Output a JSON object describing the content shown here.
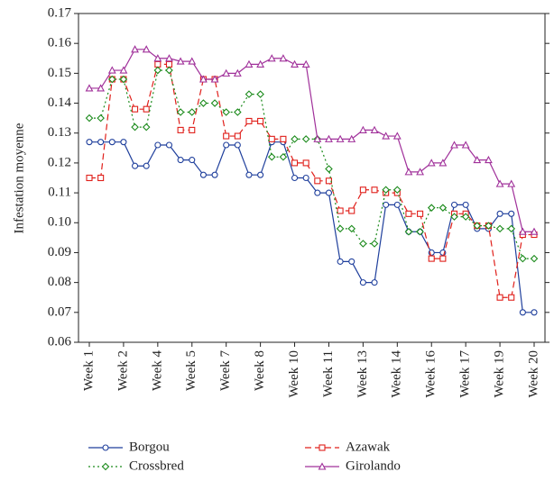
{
  "chart_data": {
    "type": "line",
    "y_label": "Infestation moyenne",
    "categories": [
      "Week 1",
      null,
      null,
      "Week 2",
      null,
      null,
      "Week 4",
      null,
      null,
      "Week 5",
      null,
      null,
      "Week 7",
      null,
      null,
      "Week 8",
      null,
      null,
      "Week 10",
      null,
      null,
      "Week 11",
      null,
      null,
      "Week 13",
      null,
      null,
      "Week 14",
      null,
      null,
      "Week 16",
      null,
      null,
      "Week 17",
      null,
      null,
      "Week 19",
      null,
      null,
      "Week 20"
    ],
    "ylim": [
      0.06,
      0.17
    ],
    "yticks": [
      0.06,
      0.07,
      0.08,
      0.09,
      {
        "value": 0.1,
        "label": "0.10"
      },
      0.11,
      0.12,
      0.13,
      0.14,
      0.15,
      0.16,
      0.17
    ],
    "series": [
      {
        "name": "Borgou",
        "color": "#1f3f9c",
        "marker": "circle",
        "dash": "none",
        "values": [
          0.127,
          0.127,
          0.127,
          0.127,
          0.119,
          0.119,
          0.126,
          0.126,
          0.121,
          0.121,
          0.116,
          0.116,
          0.126,
          0.126,
          0.116,
          0.116,
          0.127,
          0.127,
          0.115,
          0.115,
          0.11,
          0.11,
          0.087,
          0.087,
          0.08,
          0.08,
          0.106,
          0.106,
          0.097,
          0.097,
          0.09,
          0.09,
          0.106,
          0.106,
          0.098,
          0.098,
          0.103,
          0.103,
          0.07,
          0.07
        ]
      },
      {
        "name": "Azawak",
        "color": "#e0201b",
        "marker": "square",
        "dash": "7 4",
        "values": [
          0.115,
          0.115,
          0.148,
          0.148,
          0.138,
          0.138,
          0.153,
          0.153,
          0.131,
          0.131,
          0.148,
          0.148,
          0.129,
          0.129,
          0.134,
          0.134,
          0.128,
          0.128,
          0.12,
          0.12,
          0.114,
          0.114,
          0.104,
          0.104,
          0.111,
          0.111,
          0.11,
          0.11,
          0.103,
          0.103,
          0.088,
          0.088,
          0.103,
          0.103,
          0.099,
          0.099,
          0.075,
          0.075,
          0.096,
          0.096
        ]
      },
      {
        "name": "Crossbred",
        "color": "#1a8a1a",
        "marker": "diamond",
        "dash": "2 3",
        "values": [
          0.135,
          0.135,
          0.148,
          0.148,
          0.132,
          0.132,
          0.151,
          0.151,
          0.137,
          0.137,
          0.14,
          0.14,
          0.137,
          0.137,
          0.143,
          0.143,
          0.122,
          0.122,
          0.128,
          0.128,
          0.128,
          0.118,
          0.098,
          0.098,
          0.093,
          0.093,
          0.111,
          0.111,
          0.097,
          0.097,
          0.105,
          0.105,
          0.102,
          0.102,
          0.099,
          0.099,
          0.098,
          0.098,
          0.088,
          0.088
        ]
      },
      {
        "name": "Girolando",
        "color": "#a0309a",
        "marker": "triangle",
        "dash": "none",
        "values": [
          0.145,
          0.145,
          0.151,
          0.151,
          0.158,
          0.158,
          0.155,
          0.155,
          0.154,
          0.154,
          0.148,
          0.148,
          0.15,
          0.15,
          0.153,
          0.153,
          0.155,
          0.155,
          0.153,
          0.153,
          0.128,
          0.128,
          0.128,
          0.128,
          0.131,
          0.131,
          0.129,
          0.129,
          0.117,
          0.117,
          0.12,
          0.12,
          0.126,
          0.126,
          0.121,
          0.121,
          0.113,
          0.113,
          0.097,
          0.097
        ]
      }
    ]
  }
}
